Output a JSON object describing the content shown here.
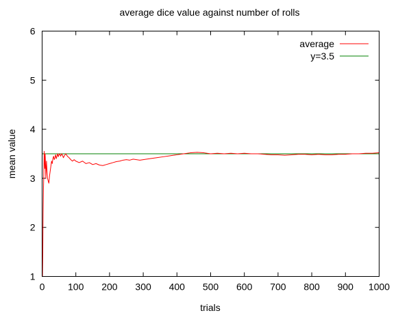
{
  "chart_data": {
    "type": "line",
    "title": "average dice value against number of rolls",
    "xlabel": "trials",
    "ylabel": "mean value",
    "xlim": [
      0,
      1000
    ],
    "ylim": [
      1,
      6
    ],
    "x_ticks": [
      0,
      100,
      200,
      300,
      400,
      500,
      600,
      700,
      800,
      900,
      1000
    ],
    "y_ticks": [
      1,
      2,
      3,
      4,
      5,
      6
    ],
    "grid": false,
    "legend_position": "top-right",
    "series": [
      {
        "name": "average",
        "color": "#ff0000",
        "x": [
          1,
          2,
          3,
          4,
          5,
          6,
          7,
          8,
          9,
          10,
          11,
          12,
          13,
          14,
          15,
          16,
          18,
          20,
          22,
          24,
          26,
          28,
          30,
          32,
          34,
          36,
          38,
          40,
          42,
          44,
          46,
          48,
          50,
          52,
          55,
          58,
          60,
          63,
          66,
          70,
          75,
          80,
          85,
          90,
          95,
          100,
          110,
          120,
          130,
          140,
          150,
          160,
          170,
          180,
          190,
          200,
          210,
          220,
          230,
          240,
          250,
          260,
          270,
          280,
          290,
          300,
          320,
          340,
          360,
          380,
          400,
          420,
          440,
          460,
          480,
          500,
          520,
          540,
          560,
          580,
          600,
          620,
          640,
          660,
          680,
          700,
          720,
          740,
          760,
          780,
          800,
          820,
          840,
          860,
          880,
          900,
          920,
          940,
          960,
          980,
          1000
        ],
        "y": [
          1.0,
          1.5,
          2.3,
          2.8,
          3.1,
          3.55,
          3.4,
          3.2,
          3.5,
          3.3,
          3.0,
          3.2,
          3.35,
          3.2,
          3.1,
          3.0,
          2.95,
          2.9,
          3.05,
          3.15,
          3.25,
          3.35,
          3.3,
          3.4,
          3.45,
          3.38,
          3.42,
          3.48,
          3.4,
          3.45,
          3.5,
          3.44,
          3.48,
          3.5,
          3.45,
          3.5,
          3.48,
          3.42,
          3.46,
          3.5,
          3.45,
          3.42,
          3.38,
          3.35,
          3.38,
          3.35,
          3.32,
          3.35,
          3.3,
          3.32,
          3.28,
          3.3,
          3.27,
          3.26,
          3.28,
          3.3,
          3.32,
          3.34,
          3.35,
          3.37,
          3.38,
          3.37,
          3.39,
          3.38,
          3.37,
          3.38,
          3.4,
          3.42,
          3.44,
          3.46,
          3.48,
          3.5,
          3.52,
          3.53,
          3.52,
          3.5,
          3.51,
          3.5,
          3.51,
          3.5,
          3.51,
          3.5,
          3.5,
          3.49,
          3.48,
          3.48,
          3.47,
          3.48,
          3.49,
          3.49,
          3.48,
          3.49,
          3.48,
          3.48,
          3.49,
          3.49,
          3.5,
          3.5,
          3.51,
          3.51,
          3.52
        ]
      },
      {
        "name": "y=3.5",
        "color": "#008000",
        "x": [
          0,
          1000
        ],
        "y": [
          3.5,
          3.5
        ]
      }
    ]
  }
}
